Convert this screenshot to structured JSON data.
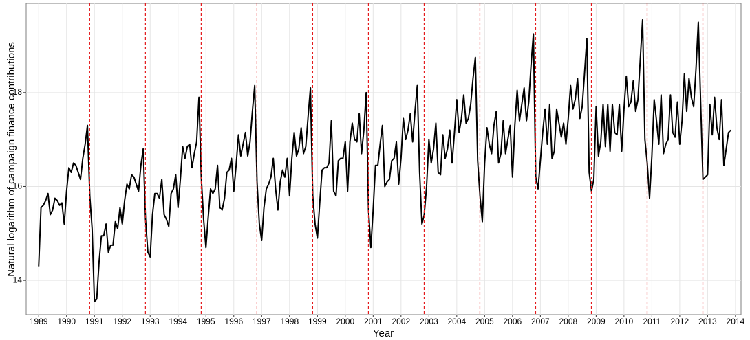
{
  "chart_data": {
    "type": "line",
    "x_label": "Year",
    "y_label": "Natural logarithm of campaign finance contributions",
    "color": "#000000",
    "vline_color": "#e41a1c",
    "grid": true,
    "xlim": [
      1988.55,
      2014.2
    ],
    "ylim": [
      13.27,
      19.9
    ],
    "xticks": [
      1989,
      1990,
      1991,
      1992,
      1993,
      1994,
      1995,
      1996,
      1997,
      1998,
      1999,
      2000,
      2001,
      2002,
      2003,
      2004,
      2005,
      2006,
      2007,
      2008,
      2009,
      2010,
      2011,
      2012,
      2013,
      2014
    ],
    "yticks": [
      14,
      16,
      18
    ],
    "vlines": [
      1990.83,
      1992.83,
      1994.83,
      1996.83,
      1998.83,
      2000.83,
      2002.83,
      2004.83,
      2006.83,
      2008.83,
      2010.83,
      2012.83
    ],
    "x": [
      1989,
      1989.083,
      1989.167,
      1989.25,
      1989.333,
      1989.417,
      1989.5,
      1989.583,
      1989.667,
      1989.75,
      1989.833,
      1989.917,
      1990,
      1990.083,
      1990.167,
      1990.25,
      1990.333,
      1990.417,
      1990.5,
      1990.583,
      1990.667,
      1990.75,
      1990.833,
      1990.917,
      1991,
      1991.083,
      1991.167,
      1991.25,
      1991.333,
      1991.417,
      1991.5,
      1991.583,
      1991.667,
      1991.75,
      1991.833,
      1991.917,
      1992,
      1992.083,
      1992.167,
      1992.25,
      1992.333,
      1992.417,
      1992.5,
      1992.583,
      1992.667,
      1992.75,
      1992.833,
      1992.917,
      1993,
      1993.083,
      1993.167,
      1993.25,
      1993.333,
      1993.417,
      1993.5,
      1993.583,
      1993.667,
      1993.75,
      1993.833,
      1993.917,
      1994,
      1994.083,
      1994.167,
      1994.25,
      1994.333,
      1994.417,
      1994.5,
      1994.583,
      1994.667,
      1994.75,
      1994.833,
      1994.917,
      1995,
      1995.083,
      1995.167,
      1995.25,
      1995.333,
      1995.417,
      1995.5,
      1995.583,
      1995.667,
      1995.75,
      1995.833,
      1995.917,
      1996,
      1996.083,
      1996.167,
      1996.25,
      1996.333,
      1996.417,
      1996.5,
      1996.583,
      1996.667,
      1996.75,
      1996.833,
      1996.917,
      1997,
      1997.083,
      1997.167,
      1997.25,
      1997.333,
      1997.417,
      1997.5,
      1997.583,
      1997.667,
      1997.75,
      1997.833,
      1997.917,
      1998,
      1998.083,
      1998.167,
      1998.25,
      1998.333,
      1998.417,
      1998.5,
      1998.583,
      1998.667,
      1998.75,
      1998.833,
      1998.917,
      1999,
      1999.083,
      1999.167,
      1999.25,
      1999.333,
      1999.417,
      1999.5,
      1999.583,
      1999.667,
      1999.75,
      1999.833,
      1999.917,
      2000,
      2000.083,
      2000.167,
      2000.25,
      2000.333,
      2000.417,
      2000.5,
      2000.583,
      2000.667,
      2000.75,
      2000.833,
      2000.917,
      2001,
      2001.083,
      2001.167,
      2001.25,
      2001.333,
      2001.417,
      2001.5,
      2001.583,
      2001.667,
      2001.75,
      2001.833,
      2001.917,
      2002,
      2002.083,
      2002.167,
      2002.25,
      2002.333,
      2002.417,
      2002.5,
      2002.583,
      2002.667,
      2002.75,
      2002.833,
      2002.917,
      2003,
      2003.083,
      2003.167,
      2003.25,
      2003.333,
      2003.417,
      2003.5,
      2003.583,
      2003.667,
      2003.75,
      2003.833,
      2003.917,
      2004,
      2004.083,
      2004.167,
      2004.25,
      2004.333,
      2004.417,
      2004.5,
      2004.583,
      2004.667,
      2004.75,
      2004.833,
      2004.917,
      2005,
      2005.083,
      2005.167,
      2005.25,
      2005.333,
      2005.417,
      2005.5,
      2005.583,
      2005.667,
      2005.75,
      2005.833,
      2005.917,
      2006,
      2006.083,
      2006.167,
      2006.25,
      2006.333,
      2006.417,
      2006.5,
      2006.583,
      2006.667,
      2006.75,
      2006.833,
      2006.917,
      2007,
      2007.083,
      2007.167,
      2007.25,
      2007.333,
      2007.417,
      2007.5,
      2007.583,
      2007.667,
      2007.75,
      2007.833,
      2007.917,
      2008,
      2008.083,
      2008.167,
      2008.25,
      2008.333,
      2008.417,
      2008.5,
      2008.583,
      2008.667,
      2008.75,
      2008.833,
      2008.917,
      2009,
      2009.083,
      2009.167,
      2009.25,
      2009.333,
      2009.417,
      2009.5,
      2009.583,
      2009.667,
      2009.75,
      2009.833,
      2009.917,
      2010,
      2010.083,
      2010.167,
      2010.25,
      2010.333,
      2010.417,
      2010.5,
      2010.583,
      2010.667,
      2010.75,
      2010.833,
      2010.917,
      2011,
      2011.083,
      2011.167,
      2011.25,
      2011.333,
      2011.417,
      2011.5,
      2011.583,
      2011.667,
      2011.75,
      2011.833,
      2011.917,
      2012,
      2012.083,
      2012.167,
      2012.25,
      2012.333,
      2012.417,
      2012.5,
      2012.583,
      2012.667,
      2012.75,
      2012.833,
      2012.917,
      2013,
      2013.083,
      2013.167,
      2013.25,
      2013.333,
      2013.417,
      2013.5,
      2013.583,
      2013.667,
      2013.75,
      2013.833
    ],
    "values": [
      14.3,
      15.55,
      15.6,
      15.7,
      15.85,
      15.4,
      15.5,
      15.75,
      15.7,
      15.6,
      15.65,
      15.2,
      15.9,
      16.4,
      16.3,
      16.5,
      16.45,
      16.3,
      16.15,
      16.6,
      16.9,
      17.3,
      15.8,
      15.1,
      13.55,
      13.6,
      14.4,
      14.95,
      14.95,
      15.2,
      14.6,
      14.75,
      14.75,
      15.25,
      15.1,
      15.55,
      15.2,
      15.7,
      16.05,
      15.95,
      16.25,
      16.2,
      16.05,
      15.9,
      16.45,
      16.8,
      15.3,
      14.6,
      14.5,
      15.4,
      15.85,
      15.85,
      15.75,
      16.15,
      15.4,
      15.3,
      15.15,
      15.85,
      15.95,
      16.25,
      15.55,
      16.15,
      16.85,
      16.6,
      16.85,
      16.9,
      16.4,
      16.7,
      16.95,
      17.9,
      16.2,
      15.3,
      14.7,
      15.35,
      15.95,
      15.85,
      15.95,
      16.45,
      15.55,
      15.5,
      15.75,
      16.3,
      16.35,
      16.6,
      15.9,
      16.45,
      17.1,
      16.65,
      16.9,
      17.15,
      16.65,
      16.95,
      17.6,
      18.15,
      16.1,
      15.2,
      14.85,
      15.55,
      15.95,
      16.05,
      16.2,
      16.6,
      15.95,
      15.5,
      16.1,
      16.35,
      16.2,
      16.6,
      15.8,
      16.6,
      17.15,
      16.65,
      16.8,
      17.25,
      16.7,
      16.85,
      17.5,
      18.1,
      15.8,
      15.2,
      14.9,
      15.65,
      16.35,
      16.4,
      16.4,
      16.5,
      17.4,
      15.9,
      15.8,
      16.55,
      16.6,
      16.6,
      16.95,
      15.9,
      16.95,
      17.35,
      17.0,
      16.95,
      17.55,
      16.7,
      17.2,
      18.0,
      15.5,
      14.7,
      15.5,
      16.45,
      16.45,
      16.9,
      17.3,
      16.0,
      16.1,
      16.15,
      16.55,
      16.6,
      16.95,
      16.05,
      16.6,
      17.45,
      17.0,
      17.2,
      17.55,
      16.95,
      17.6,
      18.15,
      16.3,
      15.2,
      15.4,
      16.0,
      17.0,
      16.5,
      16.8,
      17.35,
      16.3,
      16.25,
      17.1,
      16.6,
      16.8,
      17.2,
      16.5,
      17.15,
      17.85,
      17.15,
      17.45,
      17.95,
      17.35,
      17.45,
      17.75,
      18.3,
      18.75,
      16.55,
      15.8,
      15.25,
      16.5,
      17.25,
      16.9,
      16.7,
      17.3,
      17.6,
      16.5,
      16.7,
      17.4,
      16.7,
      17.0,
      17.3,
      16.2,
      17.3,
      18.05,
      17.4,
      17.75,
      18.1,
      17.4,
      17.8,
      18.6,
      19.25,
      16.2,
      15.95,
      16.55,
      17.15,
      17.65,
      16.9,
      17.75,
      16.6,
      16.75,
      17.65,
      17.35,
      17.05,
      17.35,
      16.9,
      17.45,
      18.15,
      17.65,
      17.85,
      18.3,
      17.45,
      17.7,
      18.4,
      19.15,
      16.3,
      15.9,
      16.15,
      17.7,
      16.65,
      16.95,
      17.75,
      16.85,
      17.75,
      16.75,
      17.75,
      17.15,
      17.1,
      17.75,
      16.75,
      17.65,
      18.35,
      17.7,
      17.8,
      18.25,
      17.6,
      17.85,
      18.7,
      19.55,
      17.0,
      16.5,
      15.75,
      16.65,
      17.85,
      17.4,
      16.9,
      17.95,
      16.7,
      16.9,
      17.0,
      17.95,
      17.15,
      17.05,
      17.8,
      16.9,
      17.4,
      18.4,
      17.6,
      18.3,
      17.9,
      17.7,
      18.5,
      19.5,
      17.8,
      16.15,
      16.2,
      16.25,
      17.75,
      17.1,
      17.9,
      17.25,
      17.0,
      17.85,
      16.45,
      16.8,
      17.15,
      17.2
    ]
  }
}
